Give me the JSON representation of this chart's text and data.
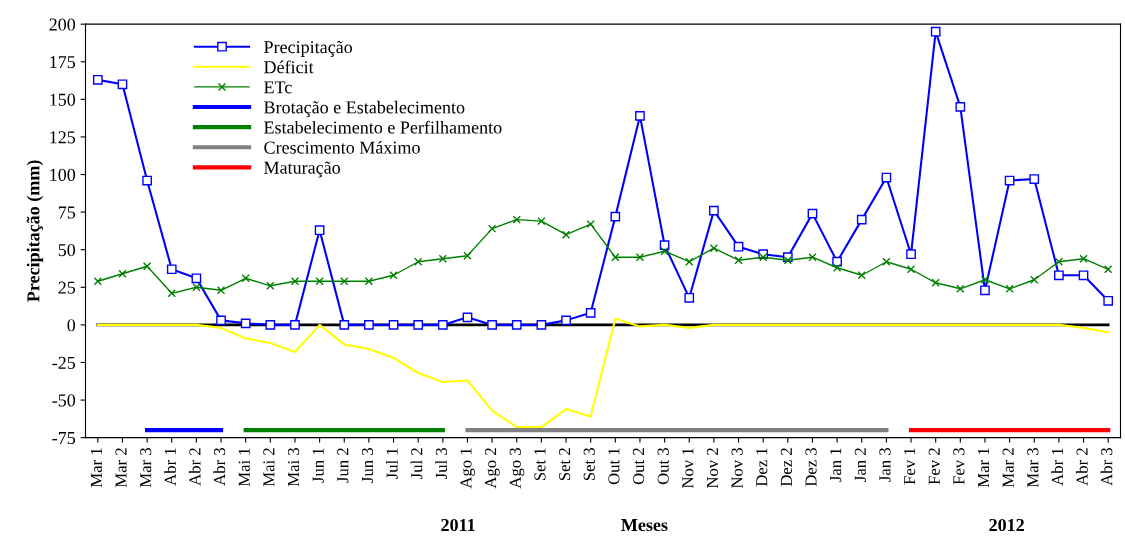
{
  "chart_data": {
    "type": "line",
    "ylabel": "Precipitação (mm)",
    "xlabel": "Meses",
    "annotations": [
      "2011",
      "2012"
    ],
    "categories": [
      "Mar 1",
      "Mar 2",
      "Mar 3",
      "Abr 1",
      "Abr 2",
      "Abr 3",
      "Mai 1",
      "Mai 2",
      "Mai 3",
      "Jun 1",
      "Jun 2",
      "Jun 3",
      "Jul 1",
      "Jul 2",
      "Jul 3",
      "Ago 1",
      "Ago 2",
      "Ago 3",
      "Set 1",
      "Set 2",
      "Set 3",
      "Out 1",
      "Out 2",
      "Out 3",
      "Nov 1",
      "Nov 2",
      "Nov 3",
      "Dez 1",
      "Dez 2",
      "Dez 3",
      "Jan 1",
      "Jan 2",
      "Jan 3",
      "Fev 1",
      "Fev 2",
      "Fev 3",
      "Mar 1",
      "Mar 2",
      "Mar 3",
      "Abr 1",
      "Abr 2",
      "Abr 3"
    ],
    "series": [
      {
        "name": "Precipitação",
        "color": "#0000ff",
        "marker": "square",
        "values": [
          163,
          160,
          96,
          37,
          31,
          3,
          1,
          0,
          0,
          63,
          0,
          0,
          0,
          0,
          0,
          5,
          0,
          0,
          0,
          3,
          8,
          72,
          139,
          53,
          18,
          76,
          52,
          47,
          45,
          74,
          42,
          70,
          98,
          47,
          195,
          145,
          23,
          96,
          97,
          33,
          33,
          16
        ]
      },
      {
        "name": "Déficit",
        "color": "#ffff00",
        "marker": "none",
        "values": [
          0,
          0,
          0,
          0,
          0,
          -2,
          -9,
          -12,
          -18,
          0,
          -13,
          -16,
          -22,
          -32,
          -38,
          -37,
          -57,
          -68,
          -68,
          -56,
          -61,
          4,
          -1,
          0,
          -2,
          0,
          0,
          0,
          0,
          0,
          0,
          0,
          0,
          0,
          0,
          0,
          0,
          0,
          0,
          0,
          -2,
          -5
        ]
      },
      {
        "name": "ETc",
        "color": "#008000",
        "marker": "cross",
        "values": [
          29,
          34,
          39,
          21,
          25,
          23,
          31,
          26,
          29,
          29,
          29,
          29,
          33,
          42,
          44,
          46,
          64,
          70,
          69,
          60,
          67,
          45,
          45,
          49,
          42,
          51,
          43,
          45,
          43,
          45,
          38,
          33,
          42,
          37,
          28,
          24,
          30,
          24,
          30,
          42,
          44,
          37
        ]
      },
      {
        "name": "Brotação e Estabelecimento",
        "color": "#0000ff",
        "marker": "none",
        "values": [
          null,
          null,
          -70,
          -70,
          -70,
          -70,
          null,
          null,
          null,
          null,
          null,
          null,
          null,
          null,
          null,
          null,
          null,
          null,
          null,
          null,
          null,
          null,
          null,
          null,
          null,
          null,
          null,
          null,
          null,
          null,
          null,
          null,
          null,
          null,
          null,
          null,
          null,
          null,
          null,
          null,
          null,
          null
        ]
      },
      {
        "name": "Estabelecimento e Perfilhamento",
        "color": "#008000",
        "marker": "none",
        "values": [
          null,
          null,
          null,
          null,
          null,
          null,
          -70,
          -70,
          -70,
          -70,
          -70,
          -70,
          -70,
          -70,
          -70,
          null,
          null,
          null,
          null,
          null,
          null,
          null,
          null,
          null,
          null,
          null,
          null,
          null,
          null,
          null,
          null,
          null,
          null,
          null,
          null,
          null,
          null,
          null,
          null,
          null,
          null,
          null
        ]
      },
      {
        "name": "Crescimento Máximo",
        "color": "#808080",
        "marker": "none",
        "values": [
          null,
          null,
          null,
          null,
          null,
          null,
          null,
          null,
          null,
          null,
          null,
          null,
          null,
          null,
          null,
          -70,
          -70,
          -70,
          -70,
          -70,
          -70,
          -70,
          -70,
          -70,
          -70,
          -70,
          -70,
          -70,
          -70,
          -70,
          -70,
          -70,
          -70,
          null,
          null,
          null,
          null,
          null,
          null,
          null,
          null,
          null
        ]
      },
      {
        "name": "Maturação",
        "color": "#ff0000",
        "marker": "none",
        "values": [
          null,
          null,
          null,
          null,
          null,
          null,
          null,
          null,
          null,
          null,
          null,
          null,
          null,
          null,
          null,
          null,
          null,
          null,
          null,
          null,
          null,
          null,
          null,
          null,
          null,
          null,
          null,
          null,
          null,
          null,
          null,
          null,
          null,
          -70,
          -70,
          -70,
          -70,
          -70,
          -70,
          -70,
          -70,
          -70
        ]
      }
    ],
    "ylim": [
      -75,
      200
    ],
    "yticks": [
      -75,
      -50,
      -25,
      0,
      25,
      50,
      75,
      100,
      125,
      150,
      175,
      200
    ],
    "ref_lines": [
      {
        "axis": "y",
        "value": 0,
        "color": "#000000"
      }
    ],
    "grid": false,
    "legend": "top left"
  }
}
